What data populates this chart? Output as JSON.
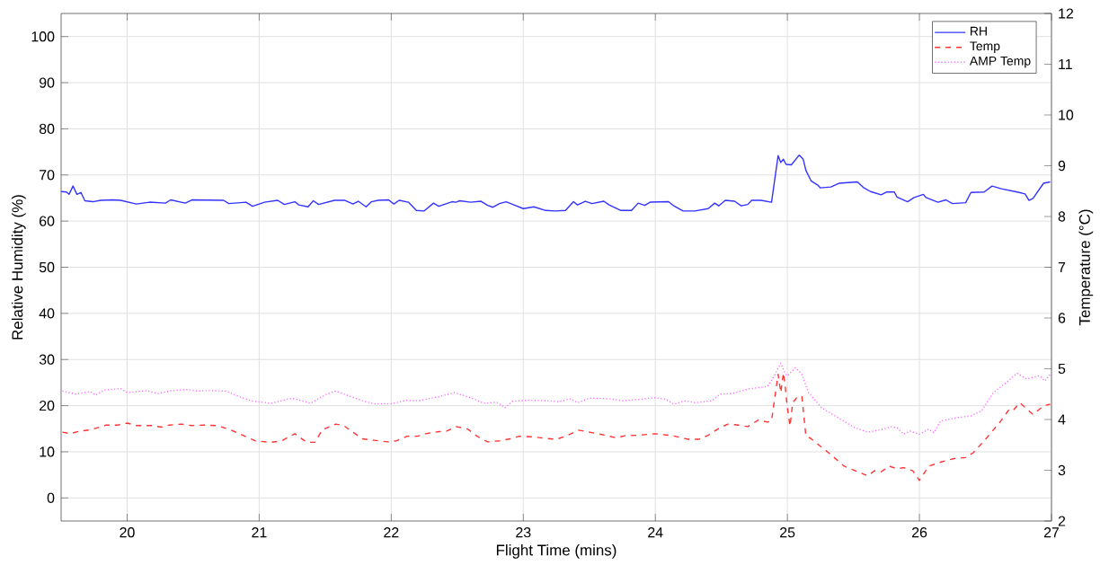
{
  "chart_data": {
    "type": "line",
    "xlabel": "Flight Time (mins)",
    "ylabel": "Relative Humidity (%)",
    "y2label": "Temperature (°C)",
    "xlim": [
      19.5,
      27
    ],
    "xticks": [
      20,
      21,
      22,
      23,
      24,
      25,
      26,
      27
    ],
    "ylim": [
      -5,
      105
    ],
    "yticks": [
      0,
      10,
      20,
      30,
      40,
      50,
      60,
      70,
      80,
      90,
      100
    ],
    "y2lim": [
      2,
      12
    ],
    "y2ticks": [
      2,
      3,
      4,
      5,
      6,
      7,
      8,
      9,
      10,
      11,
      12
    ],
    "grid": true,
    "legend": "top right",
    "series": [
      {
        "name": "RH",
        "color": "#3333ff",
        "line_style": "solid",
        "x": [
          19.5,
          19.54,
          19.56,
          19.59,
          19.62,
          19.65,
          19.68,
          19.74,
          19.8,
          19.89,
          19.95,
          20.07,
          20.17,
          20.29,
          20.33,
          20.44,
          20.49,
          20.73,
          20.77,
          20.9,
          20.95,
          21.04,
          21.14,
          21.19,
          21.27,
          21.3,
          21.37,
          21.41,
          21.45,
          21.57,
          21.65,
          21.71,
          21.75,
          21.81,
          21.85,
          21.9,
          21.98,
          22.02,
          22.06,
          22.13,
          22.19,
          22.25,
          22.32,
          22.36,
          22.46,
          22.49,
          22.52,
          22.6,
          22.68,
          22.73,
          22.77,
          22.82,
          22.87,
          22.93,
          23.0,
          23.08,
          23.17,
          23.24,
          23.32,
          23.38,
          23.41,
          23.47,
          23.52,
          23.61,
          23.65,
          23.74,
          23.82,
          23.87,
          23.92,
          23.96,
          24.1,
          24.14,
          24.21,
          24.3,
          24.4,
          24.45,
          24.48,
          24.53,
          24.6,
          24.65,
          24.7,
          24.73,
          24.8,
          24.88,
          24.93,
          24.95,
          24.97,
          24.99,
          25.03,
          25.09,
          25.12,
          25.14,
          25.18,
          25.23,
          25.25,
          25.33,
          25.39,
          25.53,
          25.58,
          25.63,
          25.71,
          25.75,
          25.81,
          25.83,
          25.91,
          25.96,
          26.03,
          26.05,
          26.14,
          26.2,
          26.25,
          26.35,
          26.39,
          26.49,
          26.55,
          26.62,
          26.74,
          26.8,
          26.83,
          26.86,
          26.94,
          26.99
        ],
        "values": [
          66.4,
          66.3,
          65.8,
          67.6,
          65.8,
          66.2,
          64.4,
          64.2,
          64.5,
          64.6,
          64.5,
          63.7,
          64.1,
          63.9,
          64.6,
          63.9,
          64.6,
          64.5,
          63.8,
          64.1,
          63.2,
          64.1,
          64.5,
          63.6,
          64.2,
          63.5,
          63.1,
          64.4,
          63.6,
          64.5,
          64.5,
          63.7,
          64.3,
          63.1,
          64.2,
          64.5,
          64.6,
          63.7,
          64.5,
          64.1,
          62.3,
          62.2,
          63.9,
          63.2,
          64.2,
          64.1,
          64.4,
          64.1,
          64.3,
          63.4,
          63.0,
          63.8,
          64.2,
          63.5,
          62.7,
          63.1,
          62.3,
          62.2,
          62.3,
          64.2,
          63.5,
          64.3,
          63.8,
          64.3,
          63.5,
          62.3,
          62.3,
          63.9,
          63.4,
          64.1,
          64.2,
          63.3,
          62.2,
          62.2,
          62.7,
          63.9,
          63.3,
          64.5,
          64.3,
          63.3,
          63.6,
          64.5,
          64.5,
          64.1,
          74.2,
          72.7,
          73.4,
          72.3,
          72.2,
          74.3,
          73.4,
          71.0,
          68.7,
          67.8,
          67.2,
          67.4,
          68.2,
          68.5,
          67.2,
          66.4,
          65.7,
          66.3,
          66.3,
          65.2,
          64.2,
          65.1,
          65.8,
          65.1,
          64.1,
          64.6,
          63.8,
          64.0,
          66.2,
          66.3,
          67.6,
          67.0,
          66.3,
          65.9,
          64.5,
          64.9,
          68.2,
          68.5
        ]
      },
      {
        "name": "Temp",
        "color": "#ff3333",
        "line_style": "dashed",
        "axis": "y2",
        "x": [
          19.51,
          19.57,
          19.64,
          19.73,
          19.84,
          19.93,
          20.0,
          20.07,
          20.19,
          20.26,
          20.32,
          20.41,
          20.49,
          20.58,
          20.68,
          20.77,
          20.85,
          20.97,
          21.09,
          21.17,
          21.27,
          21.36,
          21.42,
          21.48,
          21.58,
          21.64,
          21.78,
          21.87,
          21.97,
          22.04,
          22.12,
          22.2,
          22.26,
          22.36,
          22.42,
          22.49,
          22.58,
          22.65,
          22.73,
          22.82,
          22.9,
          22.97,
          23.07,
          23.16,
          23.25,
          23.31,
          23.42,
          23.52,
          23.62,
          23.7,
          23.77,
          23.87,
          24.0,
          24.13,
          24.25,
          24.33,
          24.4,
          24.49,
          24.55,
          24.63,
          24.7,
          24.78,
          24.85,
          24.88,
          24.9,
          24.93,
          24.95,
          24.97,
          24.98,
          25.0,
          25.02,
          25.04,
          25.08,
          25.11,
          25.14,
          25.18,
          25.31,
          25.43,
          25.61,
          25.66,
          25.71,
          25.77,
          25.83,
          25.88,
          25.95,
          26.0,
          26.07,
          26.16,
          26.26,
          26.35,
          26.41,
          26.51,
          26.61,
          26.68,
          26.71,
          26.76,
          26.86,
          26.94,
          26.99
        ],
        "values": [
          3.75,
          3.72,
          3.77,
          3.8,
          3.89,
          3.89,
          3.93,
          3.88,
          3.88,
          3.85,
          3.89,
          3.91,
          3.88,
          3.89,
          3.88,
          3.81,
          3.72,
          3.58,
          3.55,
          3.58,
          3.72,
          3.55,
          3.55,
          3.8,
          3.91,
          3.88,
          3.62,
          3.59,
          3.56,
          3.58,
          3.67,
          3.67,
          3.72,
          3.76,
          3.77,
          3.86,
          3.81,
          3.67,
          3.56,
          3.58,
          3.62,
          3.67,
          3.66,
          3.63,
          3.61,
          3.66,
          3.79,
          3.74,
          3.69,
          3.64,
          3.68,
          3.69,
          3.72,
          3.68,
          3.61,
          3.61,
          3.69,
          3.84,
          3.91,
          3.89,
          3.86,
          3.99,
          3.95,
          3.97,
          4.35,
          4.89,
          4.53,
          4.92,
          4.73,
          4.23,
          3.87,
          4.33,
          4.46,
          4.45,
          3.68,
          3.62,
          3.35,
          3.08,
          2.89,
          2.99,
          2.97,
          3.08,
          3.03,
          3.05,
          2.99,
          2.8,
          3.08,
          3.16,
          3.23,
          3.25,
          3.35,
          3.64,
          3.95,
          4.2,
          4.18,
          4.33,
          4.1,
          4.27,
          4.3
        ]
      },
      {
        "name": "AMP Temp",
        "color": "#ff66ff",
        "line_style": "dotted",
        "axis": "y2",
        "x": [
          19.51,
          19.61,
          19.72,
          19.76,
          19.83,
          19.95,
          20.0,
          20.15,
          20.23,
          20.34,
          20.46,
          20.54,
          20.61,
          20.75,
          20.85,
          20.95,
          21.09,
          21.25,
          21.39,
          21.51,
          21.58,
          21.78,
          21.87,
          22.0,
          22.12,
          22.21,
          22.36,
          22.48,
          22.6,
          22.7,
          22.8,
          22.86,
          22.92,
          23.04,
          23.19,
          23.27,
          23.36,
          23.41,
          23.5,
          23.65,
          23.75,
          23.9,
          23.99,
          24.08,
          24.14,
          24.23,
          24.3,
          24.43,
          24.49,
          24.58,
          24.7,
          24.85,
          24.9,
          24.95,
          24.98,
          25.0,
          25.06,
          25.11,
          25.16,
          25.26,
          25.38,
          25.51,
          25.61,
          25.73,
          25.78,
          25.83,
          25.88,
          25.93,
          26.0,
          26.07,
          26.11,
          26.16,
          26.29,
          26.39,
          26.47,
          26.56,
          26.64,
          26.74,
          26.81,
          26.91,
          26.95,
          26.99
        ],
        "values": [
          4.56,
          4.5,
          4.55,
          4.48,
          4.58,
          4.61,
          4.53,
          4.57,
          4.51,
          4.57,
          4.59,
          4.56,
          4.57,
          4.56,
          4.45,
          4.36,
          4.32,
          4.42,
          4.32,
          4.5,
          4.56,
          4.37,
          4.31,
          4.31,
          4.38,
          4.37,
          4.45,
          4.53,
          4.43,
          4.32,
          4.34,
          4.23,
          4.36,
          4.38,
          4.37,
          4.35,
          4.41,
          4.33,
          4.42,
          4.41,
          4.37,
          4.4,
          4.43,
          4.4,
          4.3,
          4.37,
          4.33,
          4.37,
          4.5,
          4.51,
          4.6,
          4.65,
          4.86,
          5.11,
          4.92,
          4.86,
          5.02,
          4.89,
          4.53,
          4.23,
          4.04,
          3.84,
          3.75,
          3.81,
          3.86,
          3.84,
          3.71,
          3.77,
          3.71,
          3.81,
          3.74,
          3.97,
          4.04,
          4.07,
          4.17,
          4.53,
          4.69,
          4.91,
          4.8,
          4.86,
          4.76,
          4.89
        ]
      }
    ]
  }
}
